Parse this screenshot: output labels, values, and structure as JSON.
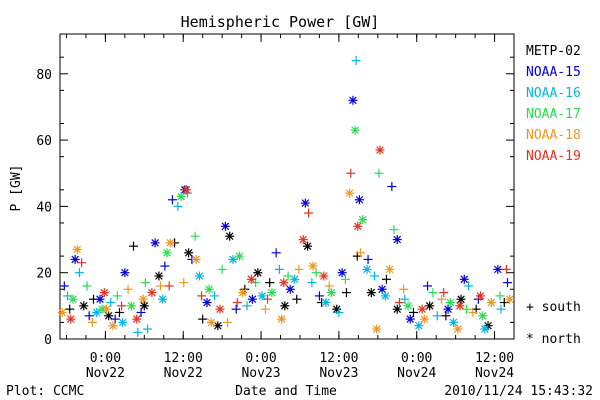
{
  "footer": {
    "left": "Plot: CCMC",
    "center": "Date and Time",
    "right": "2010/11/24 15:43:32"
  },
  "symbol_key": [
    {
      "symbol": "+",
      "label": "+ south"
    },
    {
      "symbol": "*",
      "label": "* north"
    }
  ],
  "chart_data": {
    "type": "scatter",
    "title": "Hemispheric Power [GW]",
    "ylabel": "P [GW]",
    "xlabel": "",
    "ylim": [
      0,
      92
    ],
    "xlim": [
      "2010-11-21 17:00",
      "2010-11-24 15:00"
    ],
    "grid": false,
    "legend_position": "right",
    "y_ticks": [
      0,
      20,
      40,
      60,
      80
    ],
    "x_ticks": [
      {
        "t": "2010-11-22 00:00",
        "time": "0:00",
        "day": "Nov22"
      },
      {
        "t": "2010-11-22 12:00",
        "time": "12:00",
        "day": "Nov22"
      },
      {
        "t": "2010-11-23 00:00",
        "time": "0:00",
        "day": "Nov23"
      },
      {
        "t": "2010-11-23 12:00",
        "time": "12:00",
        "day": "Nov23"
      },
      {
        "t": "2010-11-24 00:00",
        "time": "0:00",
        "day": "Nov24"
      },
      {
        "t": "2010-11-24 12:00",
        "time": "12:00",
        "day": "Nov24"
      }
    ],
    "series": [
      {
        "name": "METP-02",
        "color": "#000000",
        "points": [
          [
            "2010-11-21 18:30",
            9,
            "+"
          ],
          [
            "2010-11-21 20:40",
            10,
            "*"
          ],
          [
            "2010-11-21 22:10",
            12,
            "+"
          ],
          [
            "2010-11-22 00:30",
            7,
            "*"
          ],
          [
            "2010-11-22 02:10",
            8,
            "+"
          ],
          [
            "2010-11-22 04:20",
            28,
            "+"
          ],
          [
            "2010-11-22 06:00",
            10,
            "*"
          ],
          [
            "2010-11-22 08:15",
            19,
            "*"
          ],
          [
            "2010-11-22 10:40",
            29,
            "+"
          ],
          [
            "2010-11-22 12:50",
            26,
            "*"
          ],
          [
            "2010-11-22 15:00",
            6,
            "+"
          ],
          [
            "2010-11-22 17:20",
            4,
            "*"
          ],
          [
            "2010-11-22 19:10",
            31,
            "*"
          ],
          [
            "2010-11-22 21:30",
            15,
            "+"
          ],
          [
            "2010-11-22 23:30",
            20,
            "*"
          ],
          [
            "2010-11-23 01:20",
            17,
            "+"
          ],
          [
            "2010-11-23 03:40",
            10,
            "*"
          ],
          [
            "2010-11-23 05:30",
            12,
            "+"
          ],
          [
            "2010-11-23 07:10",
            28,
            "*"
          ],
          [
            "2010-11-23 09:20",
            11,
            "+"
          ],
          [
            "2010-11-23 11:40",
            9,
            "*"
          ],
          [
            "2010-11-23 13:10",
            14,
            "+"
          ],
          [
            "2010-11-23 14:50",
            25,
            "+"
          ],
          [
            "2010-11-23 17:00",
            14,
            "*"
          ],
          [
            "2010-11-23 19:20",
            18,
            "+"
          ],
          [
            "2010-11-23 21:00",
            9,
            "*"
          ],
          [
            "2010-11-23 23:30",
            8,
            "+"
          ],
          [
            "2010-11-24 02:00",
            10,
            "*"
          ],
          [
            "2010-11-24 04:30",
            7,
            "+"
          ],
          [
            "2010-11-24 06:50",
            12,
            "*"
          ],
          [
            "2010-11-24 09:10",
            9,
            "+"
          ],
          [
            "2010-11-24 11:00",
            4,
            "*"
          ],
          [
            "2010-11-24 13:30",
            11,
            "+"
          ]
        ]
      },
      {
        "name": "NOAA-15",
        "color": "#0000dd",
        "points": [
          [
            "2010-11-21 17:40",
            16,
            "+"
          ],
          [
            "2010-11-21 19:20",
            24,
            "*"
          ],
          [
            "2010-11-21 21:30",
            7,
            "+"
          ],
          [
            "2010-11-21 23:10",
            12,
            "*"
          ],
          [
            "2010-11-22 01:30",
            6,
            "+"
          ],
          [
            "2010-11-22 03:00",
            20,
            "*"
          ],
          [
            "2010-11-22 05:30",
            8,
            "+"
          ],
          [
            "2010-11-22 07:40",
            29,
            "*"
          ],
          [
            "2010-11-22 09:10",
            22,
            "+"
          ],
          [
            "2010-11-22 10:20",
            42,
            "+"
          ],
          [
            "2010-11-22 12:15",
            45,
            "*"
          ],
          [
            "2010-11-22 13:20",
            24,
            "+"
          ],
          [
            "2010-11-22 15:40",
            11,
            "*"
          ],
          [
            "2010-11-22 18:30",
            34,
            "*"
          ],
          [
            "2010-11-22 20:10",
            9,
            "+"
          ],
          [
            "2010-11-22 22:40",
            12,
            "*"
          ],
          [
            "2010-11-23 02:20",
            26,
            "+"
          ],
          [
            "2010-11-23 04:30",
            15,
            "*"
          ],
          [
            "2010-11-23 06:50",
            41,
            "*"
          ],
          [
            "2010-11-23 09:00",
            13,
            "+"
          ],
          [
            "2010-11-23 12:30",
            20,
            "*"
          ],
          [
            "2010-11-23 14:10",
            72,
            "*"
          ],
          [
            "2010-11-23 15:10",
            42,
            "*"
          ],
          [
            "2010-11-23 16:30",
            24,
            "+"
          ],
          [
            "2010-11-23 18:40",
            15,
            "*"
          ],
          [
            "2010-11-23 20:10",
            46,
            "+"
          ],
          [
            "2010-11-23 21:00",
            30,
            "*"
          ],
          [
            "2010-11-23 23:00",
            6,
            "*"
          ],
          [
            "2010-11-24 01:40",
            16,
            "+"
          ],
          [
            "2010-11-24 04:50",
            9,
            "*"
          ],
          [
            "2010-11-24 07:20",
            18,
            "*"
          ],
          [
            "2010-11-24 09:30",
            12,
            "+"
          ],
          [
            "2010-11-24 12:30",
            21,
            "*"
          ],
          [
            "2010-11-24 14:00",
            17,
            "+"
          ]
        ]
      },
      {
        "name": "NOAA-16",
        "color": "#00b4e6",
        "points": [
          [
            "2010-11-21 18:10",
            13,
            "+"
          ],
          [
            "2010-11-21 20:00",
            20,
            "+"
          ],
          [
            "2010-11-21 22:40",
            8,
            "*"
          ],
          [
            "2010-11-22 00:50",
            11,
            "+"
          ],
          [
            "2010-11-22 02:40",
            5,
            "*"
          ],
          [
            "2010-11-22 05:00",
            2,
            "+"
          ],
          [
            "2010-11-22 06:30",
            3,
            "+"
          ],
          [
            "2010-11-22 08:50",
            12,
            "*"
          ],
          [
            "2010-11-22 11:10",
            40,
            "+"
          ],
          [
            "2010-11-22 12:40",
            44,
            "+"
          ],
          [
            "2010-11-22 14:30",
            19,
            "*"
          ],
          [
            "2010-11-22 16:50",
            13,
            "+"
          ],
          [
            "2010-11-22 19:40",
            24,
            "*"
          ],
          [
            "2010-11-22 21:50",
            10,
            "+"
          ],
          [
            "2010-11-23 00:10",
            13,
            "*"
          ],
          [
            "2010-11-23 02:50",
            21,
            "+"
          ],
          [
            "2010-11-23 05:10",
            18,
            "*"
          ],
          [
            "2010-11-23 07:50",
            17,
            "+"
          ],
          [
            "2010-11-23 10:00",
            11,
            "*"
          ],
          [
            "2010-11-23 12:00",
            8,
            "+"
          ],
          [
            "2010-11-23 14:40",
            84,
            "+"
          ],
          [
            "2010-11-23 16:20",
            21,
            "*"
          ],
          [
            "2010-11-23 17:30",
            19,
            "+"
          ],
          [
            "2010-11-23 19:10",
            13,
            "*"
          ],
          [
            "2010-11-23 22:10",
            12,
            "+"
          ],
          [
            "2010-11-24 00:20",
            4,
            "*"
          ],
          [
            "2010-11-24 03:10",
            7,
            "+"
          ],
          [
            "2010-11-24 05:40",
            5,
            "*"
          ],
          [
            "2010-11-24 08:00",
            16,
            "+"
          ],
          [
            "2010-11-24 10:30",
            3,
            "*"
          ],
          [
            "2010-11-24 13:00",
            9,
            "+"
          ]
        ]
      },
      {
        "name": "NOAA-17",
        "color": "#28dc50",
        "points": [
          [
            "2010-11-21 19:00",
            12,
            "*"
          ],
          [
            "2010-11-21 21:10",
            16,
            "+"
          ],
          [
            "2010-11-21 23:30",
            9,
            "*"
          ],
          [
            "2010-11-22 01:50",
            13,
            "+"
          ],
          [
            "2010-11-22 04:00",
            10,
            "*"
          ],
          [
            "2010-11-22 06:10",
            17,
            "+"
          ],
          [
            "2010-11-22 09:30",
            26,
            "*"
          ],
          [
            "2010-11-22 11:40",
            43,
            "*"
          ],
          [
            "2010-11-22 13:50",
            31,
            "+"
          ],
          [
            "2010-11-22 16:00",
            15,
            "*"
          ],
          [
            "2010-11-22 18:00",
            21,
            "+"
          ],
          [
            "2010-11-22 20:40",
            25,
            "*"
          ],
          [
            "2010-11-22 23:10",
            17,
            "+"
          ],
          [
            "2010-11-23 01:40",
            14,
            "*"
          ],
          [
            "2010-11-23 04:10",
            19,
            "+"
          ],
          [
            "2010-11-23 08:30",
            20,
            "+"
          ],
          [
            "2010-11-23 10:50",
            14,
            "*"
          ],
          [
            "2010-11-23 13:00",
            18,
            "+"
          ],
          [
            "2010-11-23 14:30",
            63,
            "*"
          ],
          [
            "2010-11-23 15:40",
            36,
            "*"
          ],
          [
            "2010-11-23 18:10",
            50,
            "+"
          ],
          [
            "2010-11-23 20:30",
            33,
            "+"
          ],
          [
            "2010-11-23 22:40",
            10,
            "*"
          ],
          [
            "2010-11-24 02:30",
            14,
            "+"
          ],
          [
            "2010-11-24 05:10",
            11,
            "*"
          ],
          [
            "2010-11-24 07:40",
            9,
            "+"
          ],
          [
            "2010-11-24 10:10",
            7,
            "*"
          ],
          [
            "2010-11-24 12:50",
            13,
            "+"
          ]
        ]
      },
      {
        "name": "NOAA-18",
        "color": "#f0961e",
        "points": [
          [
            "2010-11-21 17:20",
            8,
            "*"
          ],
          [
            "2010-11-21 19:40",
            27,
            "*"
          ],
          [
            "2010-11-21 22:00",
            5,
            "+"
          ],
          [
            "2010-11-22 00:10",
            9,
            "*"
          ],
          [
            "2010-11-22 01:10",
            4,
            "*"
          ],
          [
            "2010-11-22 03:30",
            15,
            "+"
          ],
          [
            "2010-11-22 05:50",
            12,
            "*"
          ],
          [
            "2010-11-22 08:30",
            16,
            "+"
          ],
          [
            "2010-11-22 10:00",
            29,
            "*"
          ],
          [
            "2010-11-22 12:05",
            17,
            "+"
          ],
          [
            "2010-11-22 14:00",
            24,
            "*"
          ],
          [
            "2010-11-22 16:20",
            5,
            "*"
          ],
          [
            "2010-11-22 18:50",
            5,
            "+"
          ],
          [
            "2010-11-22 21:10",
            14,
            "*"
          ],
          [
            "2010-11-23 00:40",
            9,
            "+"
          ],
          [
            "2010-11-23 03:10",
            6,
            "*"
          ],
          [
            "2010-11-23 05:50",
            21,
            "+"
          ],
          [
            "2010-11-23 08:00",
            22,
            "*"
          ],
          [
            "2010-11-23 10:30",
            16,
            "+"
          ],
          [
            "2010-11-23 13:40",
            44,
            "*"
          ],
          [
            "2010-11-23 15:20",
            26,
            "+"
          ],
          [
            "2010-11-23 17:50",
            3,
            "*"
          ],
          [
            "2010-11-23 19:50",
            21,
            "*"
          ],
          [
            "2010-11-23 22:00",
            15,
            "+"
          ],
          [
            "2010-11-24 01:10",
            6,
            "*"
          ],
          [
            "2010-11-24 03:50",
            12,
            "+"
          ],
          [
            "2010-11-24 06:20",
            3,
            "*"
          ],
          [
            "2010-11-24 08:40",
            8,
            "+"
          ],
          [
            "2010-11-24 11:30",
            11,
            "*"
          ],
          [
            "2010-11-24 14:20",
            12,
            "*"
          ]
        ]
      },
      {
        "name": "NOAA-19",
        "color": "#e6321e",
        "points": [
          [
            "2010-11-21 18:40",
            6,
            "*"
          ],
          [
            "2010-11-21 20:20",
            23,
            "+"
          ],
          [
            "2010-11-21 23:50",
            14,
            "*"
          ],
          [
            "2010-11-22 02:30",
            10,
            "+"
          ],
          [
            "2010-11-22 04:50",
            6,
            "*"
          ],
          [
            "2010-11-22 07:10",
            14,
            "*"
          ],
          [
            "2010-11-22 09:50",
            16,
            "+"
          ],
          [
            "2010-11-22 12:30",
            45,
            "*"
          ],
          [
            "2010-11-22 14:50",
            13,
            "+"
          ],
          [
            "2010-11-22 17:40",
            9,
            "*"
          ],
          [
            "2010-11-22 20:20",
            11,
            "+"
          ],
          [
            "2010-11-22 22:30",
            18,
            "*"
          ],
          [
            "2010-11-23 01:00",
            12,
            "+"
          ],
          [
            "2010-11-23 03:30",
            17,
            "*"
          ],
          [
            "2010-11-23 06:30",
            30,
            "*"
          ],
          [
            "2010-11-23 07:20",
            38,
            "+"
          ],
          [
            "2010-11-23 09:40",
            19,
            "*"
          ],
          [
            "2010-11-23 13:50",
            50,
            "+"
          ],
          [
            "2010-11-23 14:55",
            34,
            "*"
          ],
          [
            "2010-11-23 18:20",
            57,
            "*"
          ],
          [
            "2010-11-23 21:20",
            11,
            "+"
          ],
          [
            "2010-11-24 00:50",
            9,
            "*"
          ],
          [
            "2010-11-24 04:10",
            14,
            "+"
          ],
          [
            "2010-11-24 06:40",
            10,
            "*"
          ],
          [
            "2010-11-24 09:50",
            13,
            "*"
          ],
          [
            "2010-11-24 13:50",
            21,
            "+"
          ]
        ]
      }
    ]
  }
}
